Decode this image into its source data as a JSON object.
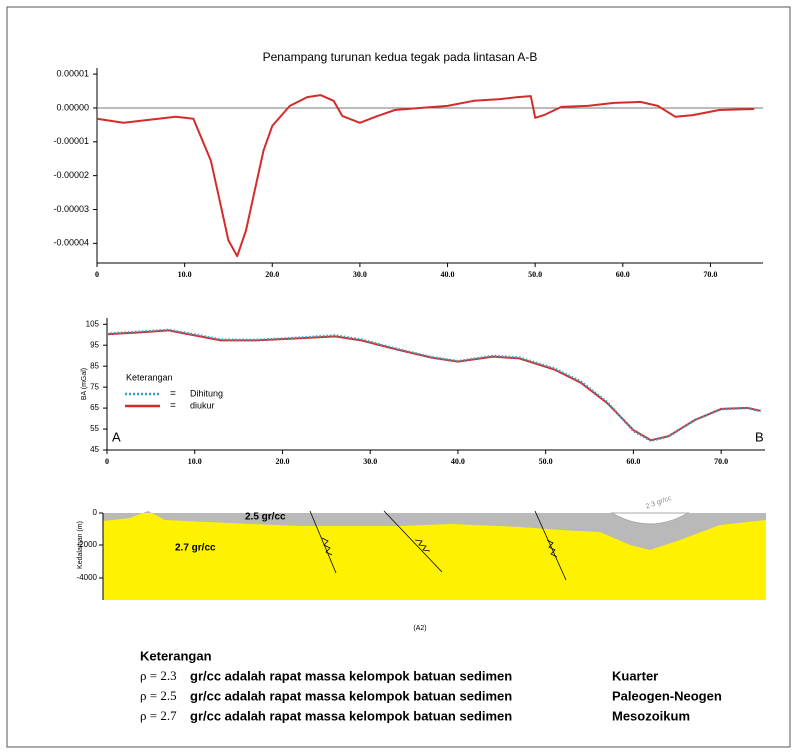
{
  "chart_data": [
    {
      "type": "line",
      "title": "Penampang turunan kedua tegak pada lintasan A-B",
      "x": [
        0,
        3,
        6,
        9,
        11,
        13,
        14,
        15,
        16,
        17,
        18,
        19,
        20,
        22,
        24,
        25.5,
        27,
        28,
        30,
        32,
        34,
        37,
        40,
        43,
        46,
        48,
        49.5,
        50,
        51,
        53,
        56,
        59,
        62,
        64,
        66,
        68,
        71,
        75
      ],
      "values": [
        -3.2e-06,
        -4.4e-06,
        -3.5e-06,
        -2.6e-06,
        -3.2e-06,
        -1.56e-05,
        -2.74e-05,
        -3.91e-05,
        -4.38e-05,
        -3.62e-05,
        -2.44e-05,
        -1.26e-05,
        -5.3e-06,
        6e-07,
        3.2e-06,
        3.8e-06,
        2.1e-06,
        -2.4e-06,
        -4.4e-06,
        -2.4e-06,
        -6e-07,
        0,
        6e-07,
        2.1e-06,
        2.6e-06,
        3.2e-06,
        3.5e-06,
        -2.9e-06,
        -2.1e-06,
        3e-07,
        6e-07,
        1.5e-06,
        1.8e-06,
        6e-07,
        -2.6e-06,
        -2.1e-06,
        -6e-07,
        -3e-07
      ],
      "color": "#d42b2b",
      "xlim": [
        0,
        76
      ],
      "ylim": [
        -4.58e-05,
        1.18e-05
      ],
      "xticks": [
        0,
        {
          "value": 10,
          "label": "10.0"
        },
        {
          "value": 20,
          "label": "20.0"
        },
        {
          "value": 30,
          "label": "30.0"
        },
        {
          "value": 40,
          "label": "40.0"
        },
        {
          "value": 50,
          "label": "50.0"
        },
        {
          "value": 60,
          "label": "60.0"
        },
        {
          "value": 70,
          "label": "70.0"
        }
      ],
      "yticks": [
        1e-05,
        {
          "value": 0,
          "label": "0.00000"
        },
        -1e-05,
        -2e-05,
        -3e-05,
        -4e-05
      ],
      "zero_line": true
    },
    {
      "type": "line",
      "y_label": "BA (mGal)",
      "x": [
        0,
        4,
        7,
        10,
        13,
        17,
        22,
        26,
        29,
        33,
        37,
        40,
        44,
        47,
        51,
        54,
        57,
        60,
        62,
        64,
        67,
        70,
        73,
        74.5
      ],
      "series": [
        {
          "name": "Dihitung",
          "color": "#2aa6c8",
          "style": "dotted",
          "values": [
            100.6,
            101.6,
            102.4,
            100.2,
            97.8,
            97.6,
            98.7,
            99.8,
            97.8,
            93.4,
            89.4,
            87.5,
            90.0,
            89.2,
            84.0,
            77.8,
            68.0,
            54.0,
            49.3,
            51.4,
            59.2,
            64.4,
            65.0,
            63.4
          ]
        },
        {
          "name": "diukur",
          "color": "#d42b2b",
          "style": "solid",
          "values": [
            100.2,
            101.2,
            102.1,
            99.7,
            97.3,
            97.3,
            98.3,
            99.2,
            97.3,
            93.0,
            89.1,
            87.2,
            89.6,
            88.7,
            83.4,
            77.1,
            67.5,
            54.5,
            49.7,
            51.6,
            59.3,
            64.6,
            65.1,
            63.7
          ]
        }
      ],
      "legend_title": "Keterangan",
      "legend_sep": "=",
      "annotations": [
        "A",
        "B"
      ],
      "xlim": [
        0,
        75
      ],
      "ylim": [
        45,
        108
      ],
      "xticks": [
        0,
        {
          "value": 10,
          "label": "10.0"
        },
        {
          "value": 20,
          "label": "20.0"
        },
        {
          "value": 30,
          "label": "30.0"
        },
        {
          "value": 40,
          "label": "40.0"
        },
        {
          "value": 50,
          "label": "50.0"
        },
        {
          "value": 60,
          "label": "60.0"
        },
        {
          "value": 70,
          "label": "70.0"
        }
      ],
      "yticks": [
        105,
        95,
        85,
        75,
        65,
        55,
        45
      ]
    }
  ],
  "section": {
    "y_label": "Kedalaman (m)",
    "depth_labels": [
      "0",
      "-2000",
      "-4000"
    ],
    "layers": [
      "2.5 gr/cc",
      "2.7 gr/cc",
      "2.3 gr/cc"
    ],
    "figure_label": "(A2)"
  },
  "caption": {
    "title": "Keterangan",
    "rows": [
      {
        "symbol": "ρ = 2.3",
        "text": "gr/cc adalah rapat massa kelompok batuan sedimen",
        "era": "Kuarter"
      },
      {
        "symbol": "ρ = 2.5",
        "text": "gr/cc adalah rapat massa kelompok batuan sedimen",
        "era": "Paleogen-Neogen"
      },
      {
        "symbol": "ρ = 2.7",
        "text": "gr/cc adalah rapat massa kelompok batuan sedimen",
        "era": "Mesozoikum"
      }
    ]
  }
}
